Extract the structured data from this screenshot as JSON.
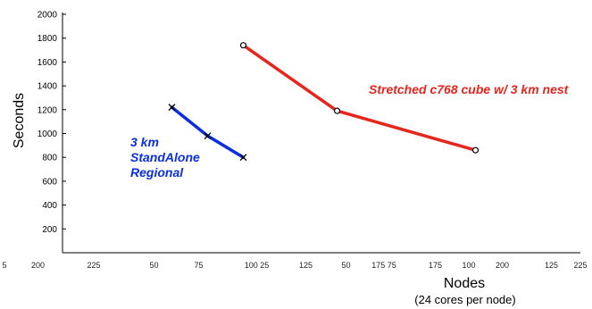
{
  "chart_data": {
    "type": "line",
    "xlabel": "Nodes",
    "xlabel_sub": "(24 cores per node)",
    "ylabel": "Seconds",
    "ylim": [
      0,
      2000
    ],
    "yticks": [
      200,
      400,
      600,
      800,
      1000,
      1200,
      1400,
      1600,
      1800,
      2000
    ],
    "xlim": [
      -5,
      240
    ],
    "xtick_labels": [
      {
        "x": 5,
        "text": "5"
      },
      {
        "x": 20,
        "text": "200"
      },
      {
        "x": 45,
        "text": "225"
      },
      {
        "x": 72,
        "text": "50"
      },
      {
        "x": 92,
        "text": "75"
      },
      {
        "x": 118,
        "text": "100 25"
      },
      {
        "x": 140,
        "text": "125"
      },
      {
        "x": 158,
        "text": "50"
      },
      {
        "x": 175,
        "text": "175 75"
      },
      {
        "x": 198,
        "text": "175"
      },
      {
        "x": 213,
        "text": "100"
      },
      {
        "x": 228,
        "text": "200"
      },
      {
        "x": 250,
        "text": "125"
      },
      {
        "x": 263,
        "text": "225"
      }
    ],
    "series": [
      {
        "name": "3 km StandAlone Regional",
        "label_lines": [
          "3 km",
          "StandAlone",
          "Regional"
        ],
        "color": "#0a2ee0",
        "marker": "x",
        "x": [
          80,
          96,
          112
        ],
        "y": [
          1220,
          980,
          800
        ]
      },
      {
        "name": "Stretched c768 cube w/ 3 km nest",
        "label_lines": [
          "Stretched c768 cube w/ 3 km nest"
        ],
        "color": "#e6251d",
        "marker": "o",
        "x": [
          112,
          154,
          216
        ],
        "y": [
          1740,
          1190,
          860
        ]
      }
    ]
  }
}
